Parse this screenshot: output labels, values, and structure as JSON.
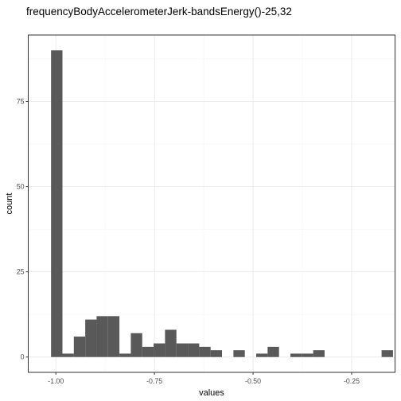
{
  "chart_data": {
    "type": "bar",
    "title": "frequencyBodyAccelerometerJerk-bandsEnergy()-25,32",
    "xlabel": "values",
    "ylabel": "count",
    "xlim": [
      -1.07,
      -0.14
    ],
    "ylim": [
      -4.5,
      94.5
    ],
    "x_ticks": [
      -1.0,
      -0.75,
      -0.5,
      -0.25
    ],
    "x_tick_labels": [
      "-1.00",
      "-0.75",
      "-0.50",
      "-0.25"
    ],
    "y_ticks": [
      0,
      25,
      50,
      75
    ],
    "y_tick_labels": [
      "0",
      "25",
      "50",
      "75"
    ],
    "x_minor_ticks": [
      -0.875,
      -0.625,
      -0.375
    ],
    "y_minor_ticks": [
      12.5,
      37.5,
      62.5,
      87.5
    ],
    "grid": true,
    "bin_width": 0.0289,
    "bins": [
      {
        "x0": -1.0122,
        "count": 90
      },
      {
        "x0": -0.9833,
        "count": 1
      },
      {
        "x0": -0.9544,
        "count": 6
      },
      {
        "x0": -0.9255,
        "count": 11
      },
      {
        "x0": -0.8966,
        "count": 12
      },
      {
        "x0": -0.8677,
        "count": 12
      },
      {
        "x0": -0.8388,
        "count": 1
      },
      {
        "x0": -0.8099,
        "count": 7
      },
      {
        "x0": -0.781,
        "count": 3
      },
      {
        "x0": -0.7521,
        "count": 4
      },
      {
        "x0": -0.7232,
        "count": 8
      },
      {
        "x0": -0.6943,
        "count": 4
      },
      {
        "x0": -0.6654,
        "count": 4
      },
      {
        "x0": -0.6365,
        "count": 3
      },
      {
        "x0": -0.6076,
        "count": 2
      },
      {
        "x0": -0.5787,
        "count": 0
      },
      {
        "x0": -0.5498,
        "count": 2
      },
      {
        "x0": -0.5209,
        "count": 0
      },
      {
        "x0": -0.492,
        "count": 1
      },
      {
        "x0": -0.4631,
        "count": 3
      },
      {
        "x0": -0.4342,
        "count": 0
      },
      {
        "x0": -0.4053,
        "count": 1
      },
      {
        "x0": -0.3764,
        "count": 1
      },
      {
        "x0": -0.3475,
        "count": 2
      },
      {
        "x0": -0.3186,
        "count": 0
      },
      {
        "x0": -0.2897,
        "count": 0
      },
      {
        "x0": -0.2608,
        "count": 0
      },
      {
        "x0": -0.2319,
        "count": 0
      },
      {
        "x0": -0.203,
        "count": 0
      },
      {
        "x0": -0.1741,
        "count": 2
      }
    ],
    "colors": {
      "bar": "#595959",
      "grid_major": "#ebebeb",
      "grid_minor": "#f5f5f5",
      "panel_border": "#333333",
      "tick_label": "#4d4d4d"
    }
  }
}
